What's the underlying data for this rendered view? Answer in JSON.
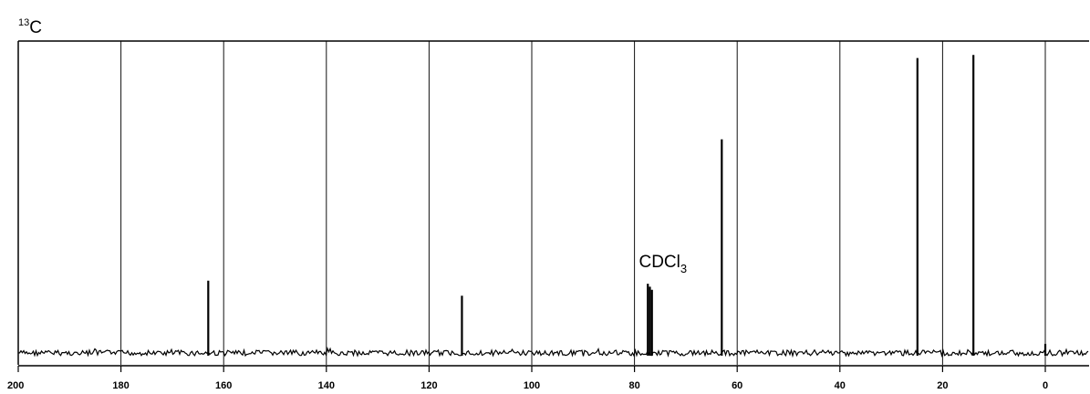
{
  "chart_data": {
    "type": "line",
    "nucleus_label": {
      "mass": "13",
      "element": "C"
    },
    "xlim": [
      200,
      0
    ],
    "x_reversed": true,
    "ylim": [
      0,
      1
    ],
    "grid": true,
    "x_ticks": [
      200,
      180,
      160,
      140,
      120,
      100,
      80,
      60,
      40,
      20,
      0
    ],
    "tick_labels": [
      "200",
      "180",
      "160",
      "140",
      "120",
      "100",
      "80",
      "60",
      "40",
      "20",
      "0"
    ],
    "series": [
      {
        "peaks": [
          {
            "x": 163.0,
            "height": 0.24
          },
          {
            "x": 113.6,
            "height": 0.19
          },
          {
            "x": 77.4,
            "height": 0.23
          },
          {
            "x": 77.0,
            "height": 0.22
          },
          {
            "x": 76.6,
            "height": 0.21
          },
          {
            "x": 63.0,
            "height": 0.71
          },
          {
            "x": 24.9,
            "height": 0.98
          },
          {
            "x": 14.0,
            "height": 0.99
          },
          {
            "x": 0.0,
            "height": 0.03
          }
        ]
      }
    ],
    "annotations": [
      {
        "main": "CDCl",
        "sub": "3",
        "x": 77.0
      }
    ]
  }
}
